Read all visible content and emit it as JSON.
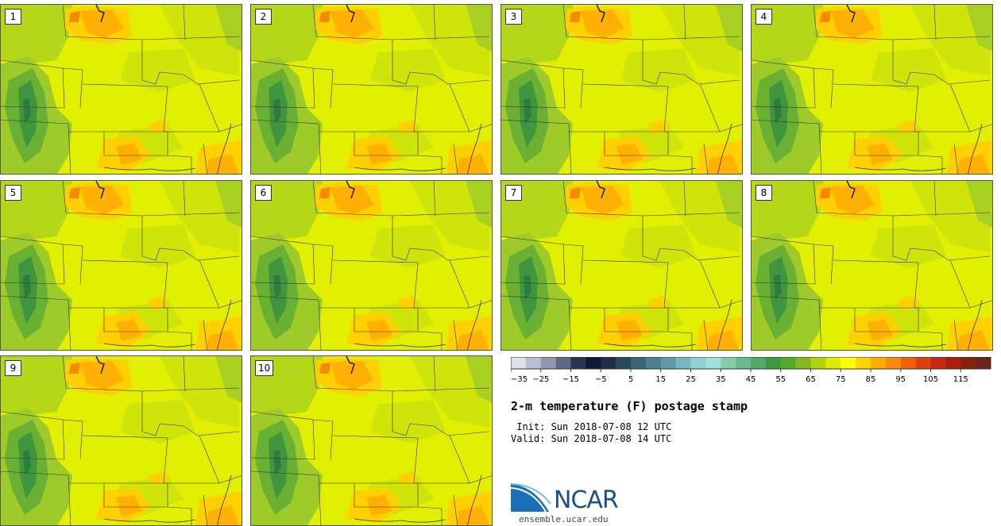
{
  "panels": [
    {
      "label": "1"
    },
    {
      "label": "2"
    },
    {
      "label": "3"
    },
    {
      "label": "4"
    },
    {
      "label": "5"
    },
    {
      "label": "6"
    },
    {
      "label": "7"
    },
    {
      "label": "8"
    },
    {
      "label": "9"
    },
    {
      "label": "10"
    }
  ],
  "colorbar": {
    "colors": [
      "#dde1ea",
      "#b8bfd0",
      "#8f98b0",
      "#5f6a88",
      "#2b3552",
      "#0f1a35",
      "#1d2e48",
      "#2c4a5e",
      "#3c6478",
      "#4e8190",
      "#5f9aa6",
      "#75b8bf",
      "#8fd2d3",
      "#9fe2dd",
      "#80cfa8",
      "#68bb88",
      "#50a86a",
      "#3e9a40",
      "#55a82a",
      "#7fbb1d",
      "#b2d30c",
      "#e2ea00",
      "#ffff00",
      "#ffd400",
      "#ffae00",
      "#f98c08",
      "#f06008",
      "#e04010",
      "#c82810",
      "#a81e10",
      "#882010",
      "#6b2418"
    ],
    "tick_labels": [
      "−35",
      "−25",
      "−15",
      "−5",
      "5",
      "15",
      "25",
      "35",
      "45",
      "55",
      "65",
      "75",
      "85",
      "95",
      "105",
      "115"
    ]
  },
  "title": "2-m temperature (F) postage stamp",
  "init_line": " Init: Sun 2018-07-08 12 UTC",
  "valid_line": "Valid: Sun 2018-07-08 14 UTC",
  "logo": {
    "name": "NCAR",
    "url": "ensemble.ucar.edu"
  }
}
